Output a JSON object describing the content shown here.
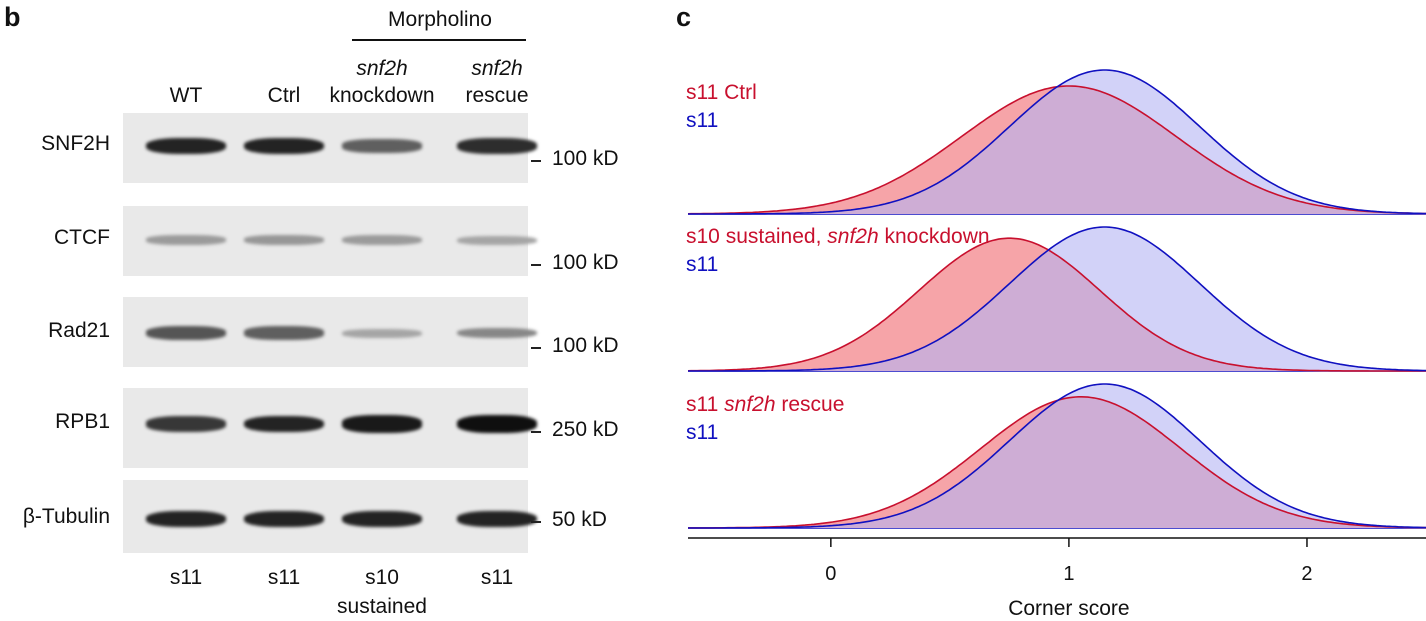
{
  "panel_b": {
    "label": "b",
    "morpholino_header": "Morpholino",
    "lanes": [
      {
        "line1": "",
        "line2": "WT",
        "bottom1": "s11",
        "bottom2": ""
      },
      {
        "line1": "",
        "line2": "Ctrl",
        "bottom1": "s11",
        "bottom2": ""
      },
      {
        "line1": "snf2h",
        "line2": "knockdown",
        "bottom1": "s10",
        "bottom2": "sustained"
      },
      {
        "line1": "snf2h",
        "line2": "rescue",
        "bottom1": "s11",
        "bottom2": ""
      }
    ],
    "blots": [
      {
        "protein": "SNF2H",
        "marker": "100 kD",
        "band_intensity": [
          0.9,
          0.9,
          0.6,
          0.85
        ]
      },
      {
        "protein": "CTCF",
        "marker": "100 kD",
        "band_intensity": [
          0.3,
          0.32,
          0.3,
          0.25
        ]
      },
      {
        "protein": "Rad21",
        "marker": "100 kD",
        "band_intensity": [
          0.65,
          0.6,
          0.25,
          0.4
        ]
      },
      {
        "protein": "RPB1",
        "marker": "250 kD",
        "band_intensity": [
          0.8,
          0.9,
          0.95,
          1.0
        ]
      },
      {
        "protein": "β-Tubulin",
        "marker": "50 kD",
        "band_intensity": [
          0.9,
          0.9,
          0.9,
          0.9
        ]
      }
    ]
  },
  "panel_c": {
    "label": "c",
    "colors": {
      "red": "#c8102e",
      "blue": "#1010c0",
      "red_fill": "#f6a4a8",
      "blue_fill": "#b4b4f4",
      "overlap_fill": "#c49ed8"
    },
    "chart_data": {
      "type": "area",
      "xlabel": "Corner score",
      "xlim": [
        -0.6,
        2.5
      ],
      "xticks": [
        0,
        1,
        2
      ],
      "ridges": [
        {
          "legend": [
            {
              "text": "s11 Ctrl",
              "color": "red"
            },
            {
              "text": "s11",
              "color": "blue"
            }
          ],
          "series": [
            {
              "name": "s11 Ctrl",
              "color": "red",
              "mean": 1.0,
              "sd": 0.45,
              "peak": 0.8
            },
            {
              "name": "s11",
              "color": "blue",
              "mean": 1.15,
              "sd": 0.4,
              "peak": 0.9
            }
          ]
        },
        {
          "legend": [
            {
              "pre": "s10 sustained, ",
              "ital": "snf2h",
              "post": " knockdown",
              "color": "red"
            },
            {
              "text": "s11",
              "color": "blue"
            }
          ],
          "series": [
            {
              "name": "s10 sustained, snf2h knockdown",
              "color": "red",
              "mean": 0.75,
              "sd": 0.38,
              "peak": 0.83
            },
            {
              "name": "s11",
              "color": "blue",
              "mean": 1.15,
              "sd": 0.4,
              "peak": 0.9
            }
          ]
        },
        {
          "legend": [
            {
              "ital": "snf2h",
              "pre": "s11 ",
              "post": " rescue",
              "color": "red"
            },
            {
              "text": "s11",
              "color": "blue"
            }
          ],
          "series": [
            {
              "name": "s11 snf2h rescue",
              "color": "red",
              "mean": 1.05,
              "sd": 0.42,
              "peak": 0.82
            },
            {
              "name": "s11",
              "color": "blue",
              "mean": 1.15,
              "sd": 0.4,
              "peak": 0.9
            }
          ]
        }
      ]
    }
  }
}
